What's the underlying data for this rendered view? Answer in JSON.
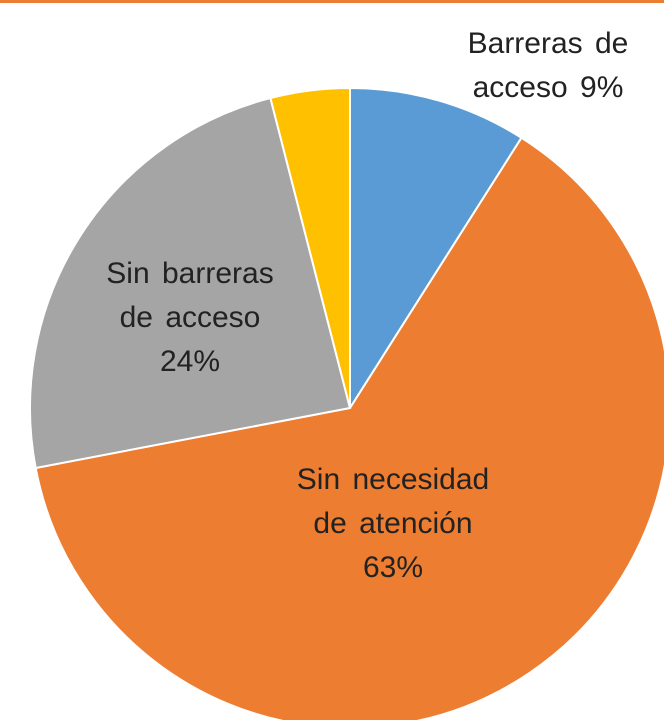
{
  "chart_data": {
    "type": "pie",
    "categories": [
      "Barreras de acceso",
      "Sin necesidad de atención",
      "Sin barreras de acceso",
      null
    ],
    "values": [
      9,
      63,
      24,
      4
    ],
    "value_labels": [
      "9%",
      "63%",
      "24%",
      null
    ],
    "colors": [
      "#5b9bd5",
      "#ed7d31",
      "#a5a5a5",
      "#ffc000"
    ]
  }
}
